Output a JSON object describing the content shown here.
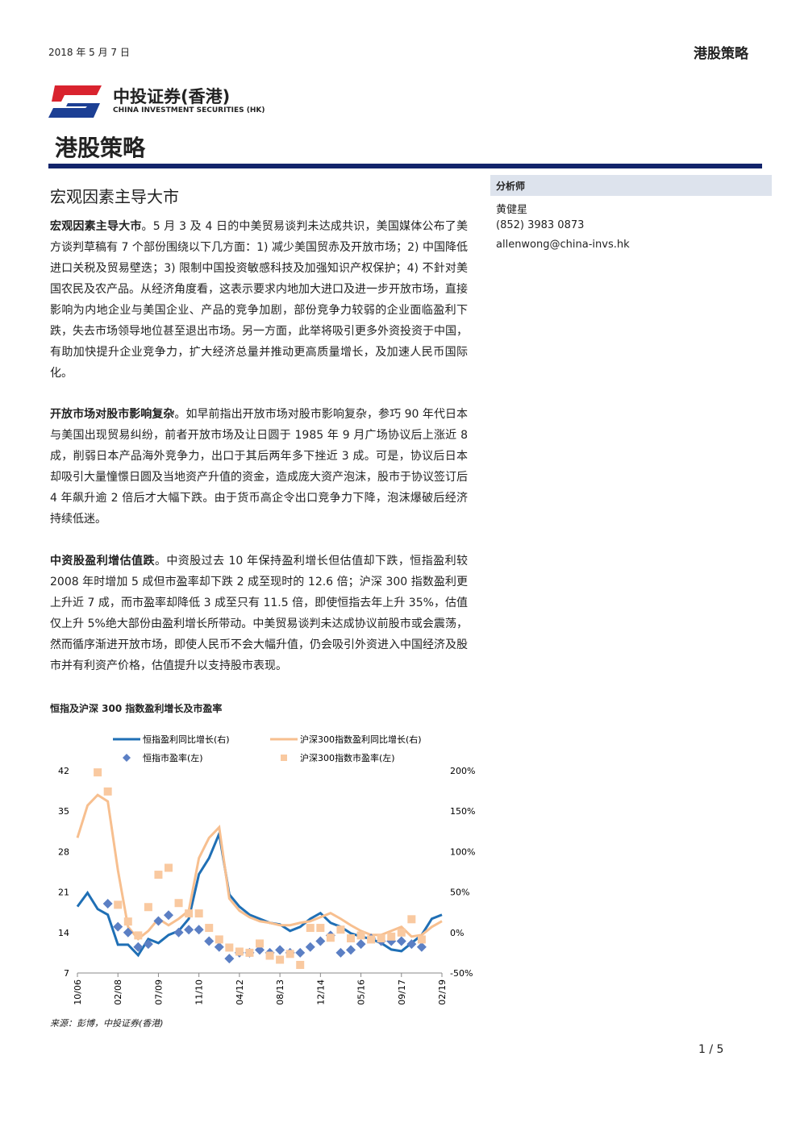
{
  "header": {
    "date": "2018 年 5 月 7 日",
    "series_title": "港股策略"
  },
  "logo": {
    "name_cn": "中投证券(香港)",
    "name_en": "CHINA INVESTMENT SECURITIES (HK)"
  },
  "document_title": "港股策略",
  "section_title": "宏观因素主导大市",
  "paragraphs": [
    {
      "lead": "宏观因素主导大市",
      "text": "。5 月 3 及 4 日的中美贸易谈判未达成共识，美国媒体公布了美方谈判草稿有 7 个部份围绕以下几方面：1) 减少美国贸赤及开放市场；2) 中国降低进口关税及贸易壁迭；3) 限制中国投资敏感科技及加强知识产权保护；4) 不針对美国农民及农产品。从经济角度看，这表示要求内地加大进口及进一步开放市场，直接影响为内地企业与美国企业、产品的竞争加剧，部份竞争力较弱的企业面临盈利下跌，失去市场领导地位甚至退出市场。另一方面，此举将吸引更多外资投资于中国，有助加快提升企业竞争力，扩大经济总量并推动更高质量增长，及加速人民币国际化。"
    },
    {
      "lead": "开放市场对股市影响复杂",
      "text": "。如早前指出开放市场对股市影响复杂，参巧 90 年代日本与美国出现贸易纠纷，前者开放市场及让日圆于 1985 年 9 月广场协议后上涨近 8 成，削弱日本产品海外竞争力，出口于其后两年多下挫近 3 成。可是，协议后日本却吸引大量憧憬日圆及当地资产升值的资金，造成庞大资产泡沫，股市于协议签订后 4 年飙升逾 2 倍后才大幅下跌。由于货币高企令出口竞争力下降，泡沫爆破后经济持续低迷。"
    },
    {
      "lead": "中资股盈利增估值跌",
      "text": "。中资股过去 10 年保持盈利增长但估值却下跌，恒指盈利较 2008 年时增加 5 成但市盈率却下跌 2 成至现时的 12.6 倍；沪深 300 指数盈利更上升近 7 成，而市盈率却降低 3 成至只有 11.5 倍，即使恒指去年上升 35%，估值仅上升 5%绝大部份由盈利增长所带动。中美贸易谈判未达成协议前股市或会震荡，然而循序渐进开放市场，即使人民币不会大幅升值，仍会吸引外资进入中国经济及股市并有利资产价格，估值提升以支持股市表现。"
    }
  ],
  "analyst": {
    "label": "分析师",
    "name": "黄健星",
    "phone": "(852) 3983 0873",
    "email": "allenwong@china-invs.hk"
  },
  "chart_data": {
    "type": "combo",
    "title": "恒指及沪深 300 指数盈利增长及市盈率",
    "categories": [
      "10/06",
      null,
      null,
      null,
      "02/08",
      null,
      null,
      null,
      "07/09",
      null,
      null,
      null,
      "11/10",
      null,
      null,
      null,
      "04/12",
      null,
      null,
      null,
      "08/13",
      null,
      null,
      null,
      "12/14",
      null,
      null,
      null,
      "05/16",
      null,
      null,
      null,
      "09/17",
      null,
      null,
      null,
      "02/19"
    ],
    "series": [
      {
        "name": "恒指盈利同比增长(右)",
        "type": "line",
        "axis": "y2",
        "color": "#1f6fb5",
        "values": [
          32,
          49,
          29,
          22,
          -15,
          -15,
          -28,
          -8,
          -13,
          -3,
          2,
          17,
          72,
          92,
          122,
          47,
          32,
          22,
          17,
          12,
          10,
          2,
          7,
          17,
          24,
          12,
          7,
          -1,
          -5,
          -8,
          -13,
          -21,
          -23,
          -13,
          -3,
          17,
          22
        ]
      },
      {
        "name": "沪深300指数盈利同比增长(右)",
        "type": "line",
        "axis": "y2",
        "color": "#f7bf8f",
        "values": [
          117,
          157,
          170,
          162,
          77,
          7,
          -8,
          2,
          17,
          9,
          17,
          27,
          92,
          117,
          130,
          42,
          27,
          19,
          14,
          12,
          9,
          9,
          12,
          14,
          19,
          24,
          17,
          9,
          2,
          -3,
          -3,
          2,
          7,
          -5,
          -3,
          7,
          14
        ]
      },
      {
        "name": "恒指市盈率(左)",
        "type": "scatter",
        "marker": "diamond",
        "color": "#5b7fc4",
        "values": [
          null,
          null,
          null,
          19.0,
          15.0,
          14.0,
          11.5,
          12.0,
          16.0,
          17.0,
          14.0,
          14.5,
          14.5,
          12.5,
          11.5,
          9.5,
          10.5,
          10.5,
          11.0,
          10.5,
          11.0,
          10.5,
          10.5,
          11.5,
          12.5,
          13.5,
          10.5,
          11.0,
          12.0,
          13.0,
          12.5,
          12.5,
          12.5,
          12.0,
          11.5,
          null,
          null
        ]
      },
      {
        "name": "沪深300指数市盈率(左)",
        "type": "scatter",
        "marker": "square",
        "color": "#f9c9a0",
        "values": [
          null,
          null,
          41.7,
          38.4,
          18.8,
          15.9,
          13.5,
          18.4,
          24.0,
          25.2,
          19.1,
          17.3,
          17.3,
          14.8,
          12.8,
          11.4,
          10.7,
          10.5,
          12.1,
          10.0,
          9.3,
          10.3,
          8.4,
          14.8,
          14.8,
          13.1,
          14.5,
          13.0,
          13.5,
          12.8,
          13.0,
          13.3,
          14.0,
          16.3,
          12.8,
          null,
          null
        ]
      }
    ],
    "ylim": [
      7,
      42
    ],
    "yticks": [
      7,
      14,
      21,
      28,
      35,
      42
    ],
    "y2lim": [
      -50,
      200
    ],
    "y2ticks": [
      {
        "value": -50,
        "label": "-50%"
      },
      {
        "value": 0,
        "label": "0%"
      },
      {
        "value": 50,
        "label": "50%"
      },
      {
        "value": 100,
        "label": "100%"
      },
      {
        "value": 150,
        "label": "150%"
      },
      {
        "value": 200,
        "label": "200%"
      }
    ],
    "source": "来源：彭博，中投证券(香港)"
  },
  "footer": {
    "page": "1 / 5"
  }
}
